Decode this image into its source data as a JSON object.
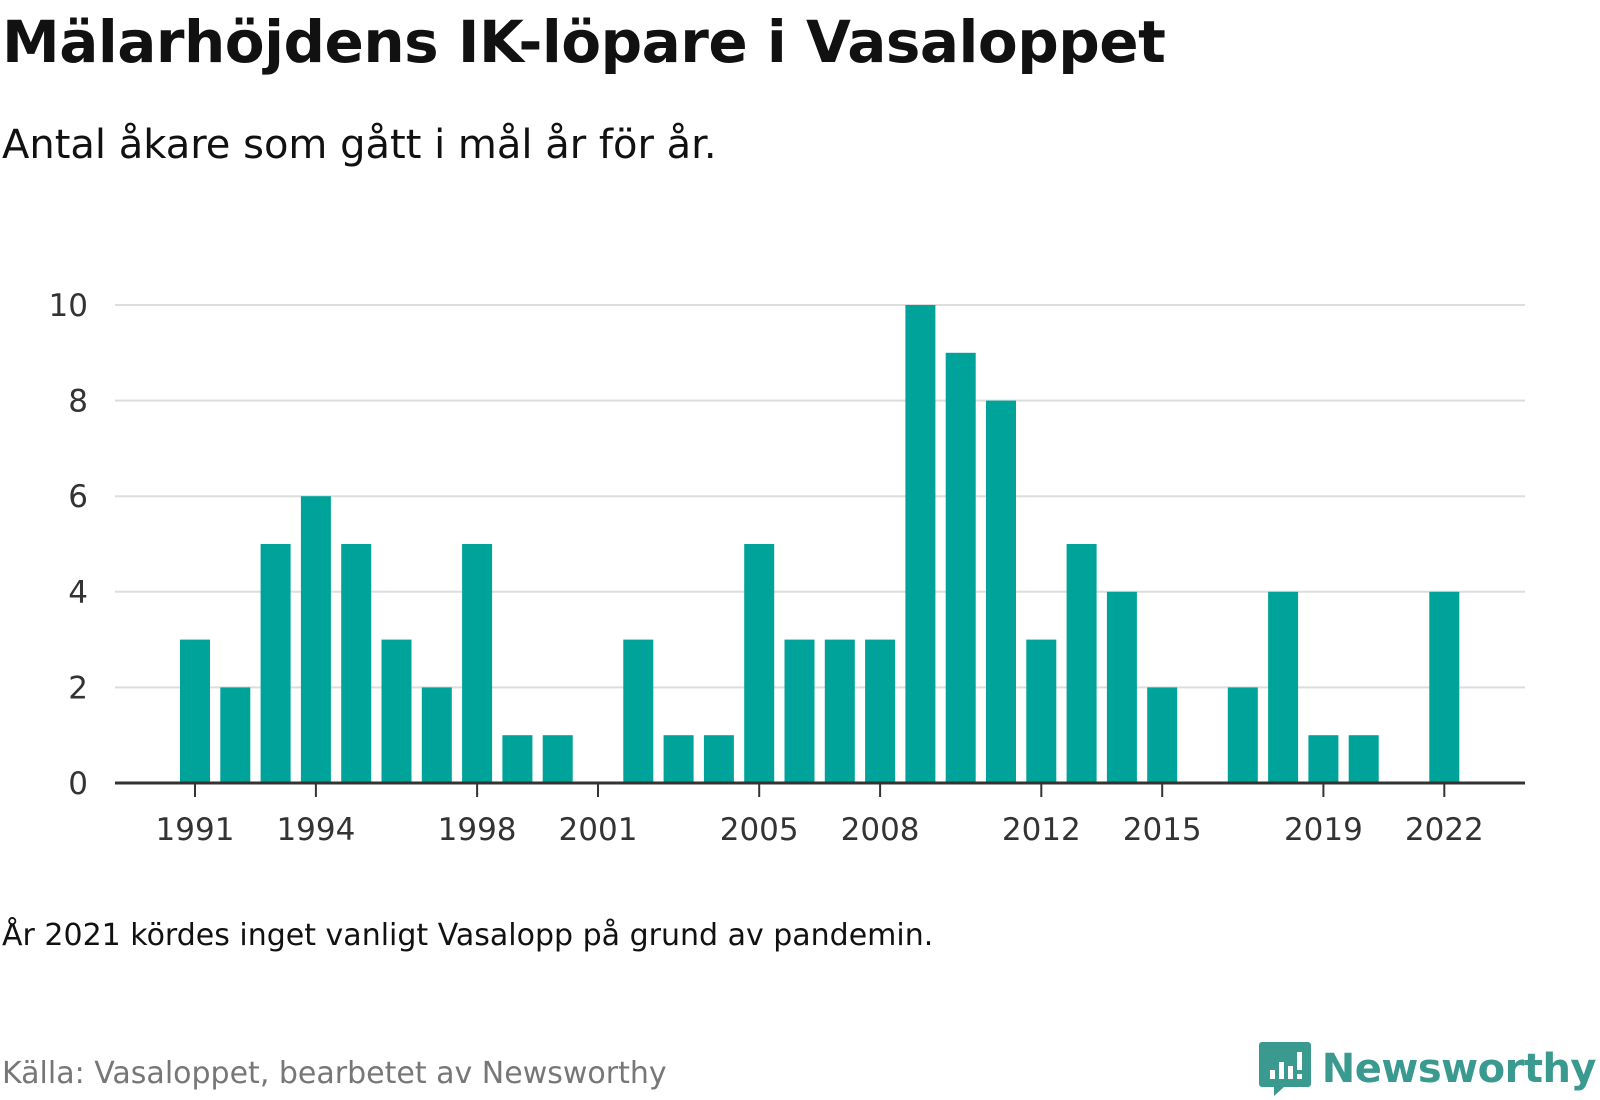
{
  "header": {
    "title": "Mälarhöjdens IK-löpare i Vasaloppet",
    "subtitle": "Antal åkare som gått i mål år för år."
  },
  "footer": {
    "note": "År 2021 kördes inget vanligt Vasalopp på grund av pandemin.",
    "source": "Källa: Vasaloppet, bearbetet av Newsworthy",
    "brand": "Newsworthy"
  },
  "colors": {
    "bar": "#00a39a",
    "grid": "#dddddd",
    "axis": "#333333",
    "brand": "#3a9a90"
  },
  "chart_data": {
    "type": "bar",
    "title": "Mälarhöjdens IK-löpare i Vasaloppet",
    "subtitle": "Antal åkare som gått i mål år för år.",
    "xlabel": "",
    "ylabel": "",
    "ylim": [
      0,
      10
    ],
    "yticks": [
      0,
      2,
      4,
      6,
      8,
      10
    ],
    "xticks": [
      1991,
      1994,
      1998,
      2001,
      2005,
      2008,
      2012,
      2015,
      2019,
      2022
    ],
    "grid": true,
    "categories": [
      1991,
      1992,
      1993,
      1994,
      1995,
      1996,
      1997,
      1998,
      1999,
      2000,
      2001,
      2002,
      2003,
      2004,
      2005,
      2006,
      2007,
      2008,
      2009,
      2010,
      2011,
      2012,
      2013,
      2014,
      2015,
      2016,
      2017,
      2018,
      2019,
      2020,
      2021,
      2022
    ],
    "values": [
      3,
      2,
      5,
      6,
      5,
      3,
      2,
      5,
      1,
      1,
      0,
      3,
      1,
      1,
      5,
      3,
      3,
      3,
      10,
      9,
      8,
      3,
      5,
      4,
      2,
      0,
      2,
      4,
      1,
      1,
      0,
      4
    ]
  }
}
